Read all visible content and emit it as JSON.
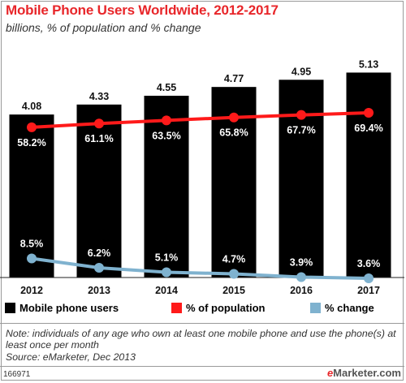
{
  "chart_data": {
    "type": "bar",
    "title": "Mobile Phone Users Worldwide, 2012-2017",
    "subtitle": "billions, % of population and % change",
    "categories": [
      "2012",
      "2013",
      "2014",
      "2015",
      "2016",
      "2017"
    ],
    "series": [
      {
        "name": "Mobile phone users",
        "type": "bar",
        "values": [
          4.08,
          4.33,
          4.55,
          4.77,
          4.95,
          5.13
        ],
        "labels": [
          "4.08",
          "4.33",
          "4.55",
          "4.77",
          "4.95",
          "5.13"
        ],
        "color": "#000000"
      },
      {
        "name": "% of population",
        "type": "line",
        "values": [
          58.2,
          61.1,
          63.5,
          65.8,
          67.7,
          69.4
        ],
        "labels": [
          "58.2%",
          "61.1%",
          "63.5%",
          "65.8%",
          "67.7%",
          "69.4%"
        ],
        "color": "#ff1a1a"
      },
      {
        "name": "% change",
        "type": "line",
        "values": [
          8.5,
          6.2,
          5.1,
          4.7,
          3.9,
          3.6
        ],
        "labels": [
          "8.5%",
          "6.2%",
          "5.1%",
          "4.7%",
          "3.9%",
          "3.6%"
        ],
        "color": "#7fb2cf"
      }
    ],
    "legend_position": "bottom",
    "grid": false
  },
  "legend": {
    "users": "Mobile phone users",
    "population": "% of population",
    "change": "% change"
  },
  "footer": {
    "note": "Note: individuals of any age who own at least one mobile phone and use the phone(s) at least once per month",
    "source": "Source: eMarketer, Dec 2013",
    "chart_id": "166971",
    "brand_e": "e",
    "brand_rest": "Marketer.com"
  }
}
